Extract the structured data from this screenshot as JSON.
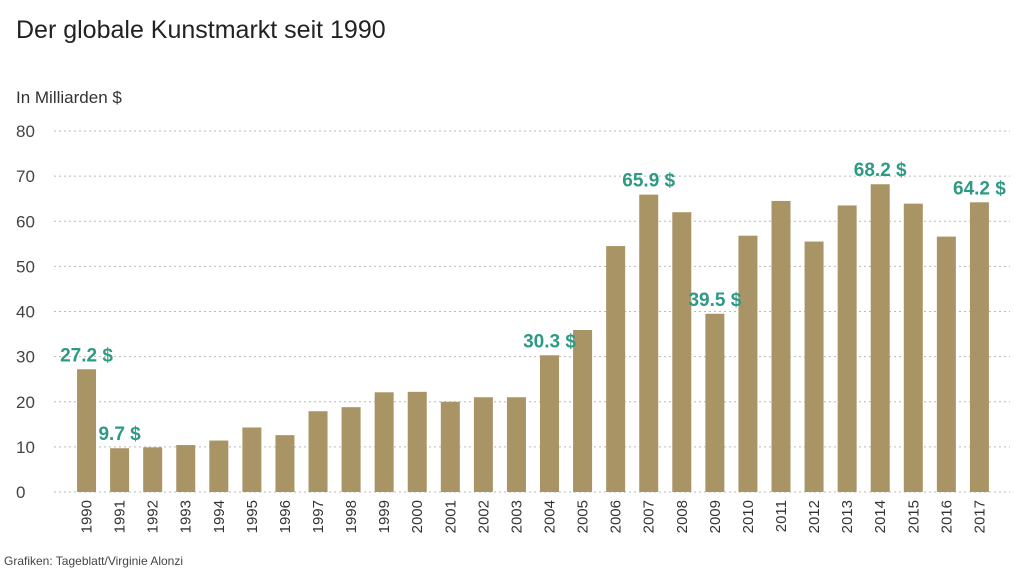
{
  "chart_data": {
    "type": "bar",
    "title": "Der globale Kunstmarkt seit 1990",
    "ylabel": "In Milliarden $",
    "xlabel": "",
    "credit": "Grafiken: Tageblatt/Virginie Alonzi",
    "ylim": [
      0,
      80
    ],
    "yticks": [
      0,
      10,
      20,
      30,
      40,
      50,
      60,
      70,
      80
    ],
    "grid": true,
    "legend": "none",
    "categories": [
      "1990",
      "1991",
      "1992",
      "1993",
      "1994",
      "1995",
      "1996",
      "1997",
      "1998",
      "1999",
      "2000",
      "2001",
      "2002",
      "2003",
      "2004",
      "2005",
      "2006",
      "2007",
      "2008",
      "2009",
      "2010",
      "2011",
      "2012",
      "2013",
      "2014",
      "2015",
      "2016",
      "2017"
    ],
    "values": [
      27.2,
      9.7,
      9.9,
      10.4,
      11.4,
      14.3,
      12.6,
      17.9,
      18.8,
      22.1,
      22.2,
      20.0,
      21.0,
      21.0,
      30.3,
      35.9,
      54.5,
      65.9,
      62.0,
      39.5,
      56.8,
      64.5,
      55.5,
      63.5,
      68.2,
      63.9,
      56.6,
      64.2
    ],
    "annotations": [
      {
        "category": "1990",
        "label": "27.2 $"
      },
      {
        "category": "1991",
        "label": "9.7 $"
      },
      {
        "category": "2004",
        "label": "30.3 $"
      },
      {
        "category": "2007",
        "label": "65.9 $"
      },
      {
        "category": "2009",
        "label": "39.5 $"
      },
      {
        "category": "2014",
        "label": "68.2 $"
      },
      {
        "category": "2017",
        "label": "64.2 $"
      }
    ],
    "colors": {
      "bar": "#a99466",
      "annotation": "#2e9a84",
      "text": "#222222"
    }
  }
}
